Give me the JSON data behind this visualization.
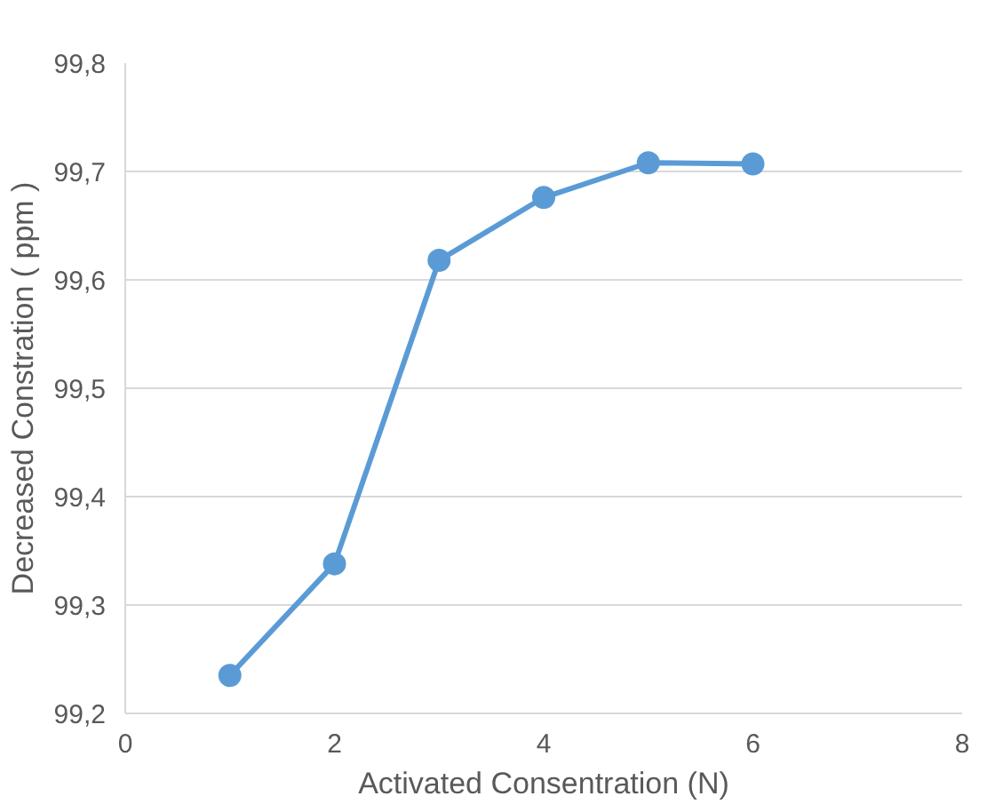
{
  "chart_data": {
    "type": "line",
    "xlabel": "Activated Consentration (N)",
    "ylabel": "Decreased Constration ( ppm )",
    "x": [
      1,
      2,
      3,
      4,
      5,
      6
    ],
    "series": [
      {
        "color": "#5b9bd5",
        "values": [
          99.235,
          99.338,
          99.618,
          99.676,
          99.708,
          99.707
        ]
      }
    ],
    "xlim": [
      0,
      8
    ],
    "xticks": [
      0,
      2,
      4,
      6,
      8
    ],
    "ylim": [
      99.2,
      99.8
    ],
    "yticks": [
      {
        "value": 99.2,
        "label": "99,2"
      },
      {
        "value": 99.3,
        "label": "99,3"
      },
      {
        "value": 99.4,
        "label": "99,4"
      },
      {
        "value": 99.5,
        "label": "99,5"
      },
      {
        "value": 99.6,
        "label": "99,6"
      },
      {
        "value": 99.7,
        "label": "99,7"
      },
      {
        "value": 99.8,
        "label": "99,8"
      }
    ],
    "grid": "y",
    "marker": "circle",
    "line_style": "solid"
  }
}
